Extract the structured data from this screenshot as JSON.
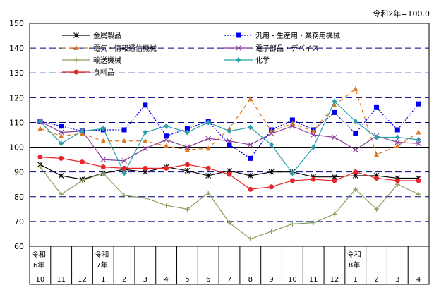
{
  "chart_data": {
    "type": "line",
    "unit_note": "令和2年=100.0",
    "x": [
      "10",
      "11",
      "12",
      "1",
      "2",
      "3",
      "4",
      "5",
      "6",
      "7",
      "8",
      "9",
      "10",
      "11",
      "12",
      "1",
      "2",
      "3",
      "4"
    ],
    "year_labels": [
      {
        "index": 0,
        "era": "令和",
        "year": "6年"
      },
      {
        "index": 3,
        "era": "令和",
        "year": "7年"
      },
      {
        "index": 15,
        "era": "令和",
        "year": "8年"
      }
    ],
    "ylim": [
      60,
      150
    ],
    "yticks": [
      60,
      70,
      80,
      90,
      100,
      110,
      120,
      130,
      140,
      150
    ],
    "grid": "horizontal dashed navy lines; solid line at 100",
    "legend": "top, two columns, inside plot",
    "series": [
      {
        "name": "金属製品",
        "color": "#000000",
        "marker": "asterisk",
        "dash": "solid",
        "values": [
          93,
          88.5,
          87,
          89.5,
          91,
          90,
          92,
          90.5,
          88.5,
          90.5,
          88.5,
          90,
          90,
          88,
          88,
          88.5,
          88.5,
          87.5,
          87.5
        ]
      },
      {
        "name": "汎用・生産用・業務用機械",
        "color": "#0000ee",
        "marker": "square",
        "dash": "dotted",
        "values": [
          110.5,
          108.5,
          106.5,
          107,
          107,
          117,
          104.5,
          107.5,
          110.5,
          101,
          95.5,
          107,
          111,
          107,
          114,
          105.5,
          116,
          107,
          117.5
        ]
      },
      {
        "name": "電気・情報通信機械",
        "color": "#e07820",
        "marker": "triangle",
        "dash": "dashed",
        "values": [
          107.5,
          104.5,
          105.5,
          102.5,
          102.5,
          102.5,
          100.5,
          99,
          99.5,
          107.5,
          119.5,
          106.5,
          109.5,
          106.5,
          117,
          123.5,
          97,
          100.5,
          106
        ]
      },
      {
        "name": "電子部品・デバイス",
        "color": "#8a3f9a",
        "marker": "x",
        "dash": "solid",
        "values": [
          110.5,
          106,
          106.5,
          95,
          94.5,
          99.5,
          103,
          100,
          103.5,
          102.5,
          101,
          105.5,
          108.5,
          105,
          104,
          99,
          104.5,
          102,
          101.5
        ]
      },
      {
        "name": "輸送機械",
        "color": "#8aa05a",
        "marker": "plus",
        "dash": "solid",
        "values": [
          92,
          81,
          86.5,
          89.5,
          80.5,
          79.5,
          76.5,
          75,
          81.5,
          69.5,
          63,
          66,
          69,
          69.5,
          73,
          83,
          75,
          85,
          81
        ]
      },
      {
        "name": "化学",
        "color": "#2aa0a8",
        "marker": "diamond",
        "dash": "solid",
        "values": [
          110.5,
          101.5,
          106.5,
          107.5,
          89.5,
          106,
          108.5,
          106,
          110,
          106.5,
          108,
          101,
          89.5,
          100,
          118.5,
          110.5,
          104,
          104,
          103
        ]
      },
      {
        "name": "食料品",
        "color": "#e8262a",
        "marker": "circle",
        "dash": "solid",
        "values": [
          96,
          95.5,
          94,
          92,
          91.5,
          91.5,
          91.5,
          93,
          91.5,
          89,
          83,
          84,
          86.5,
          87,
          86.5,
          90,
          87.5,
          86.5,
          86.5
        ]
      }
    ]
  }
}
